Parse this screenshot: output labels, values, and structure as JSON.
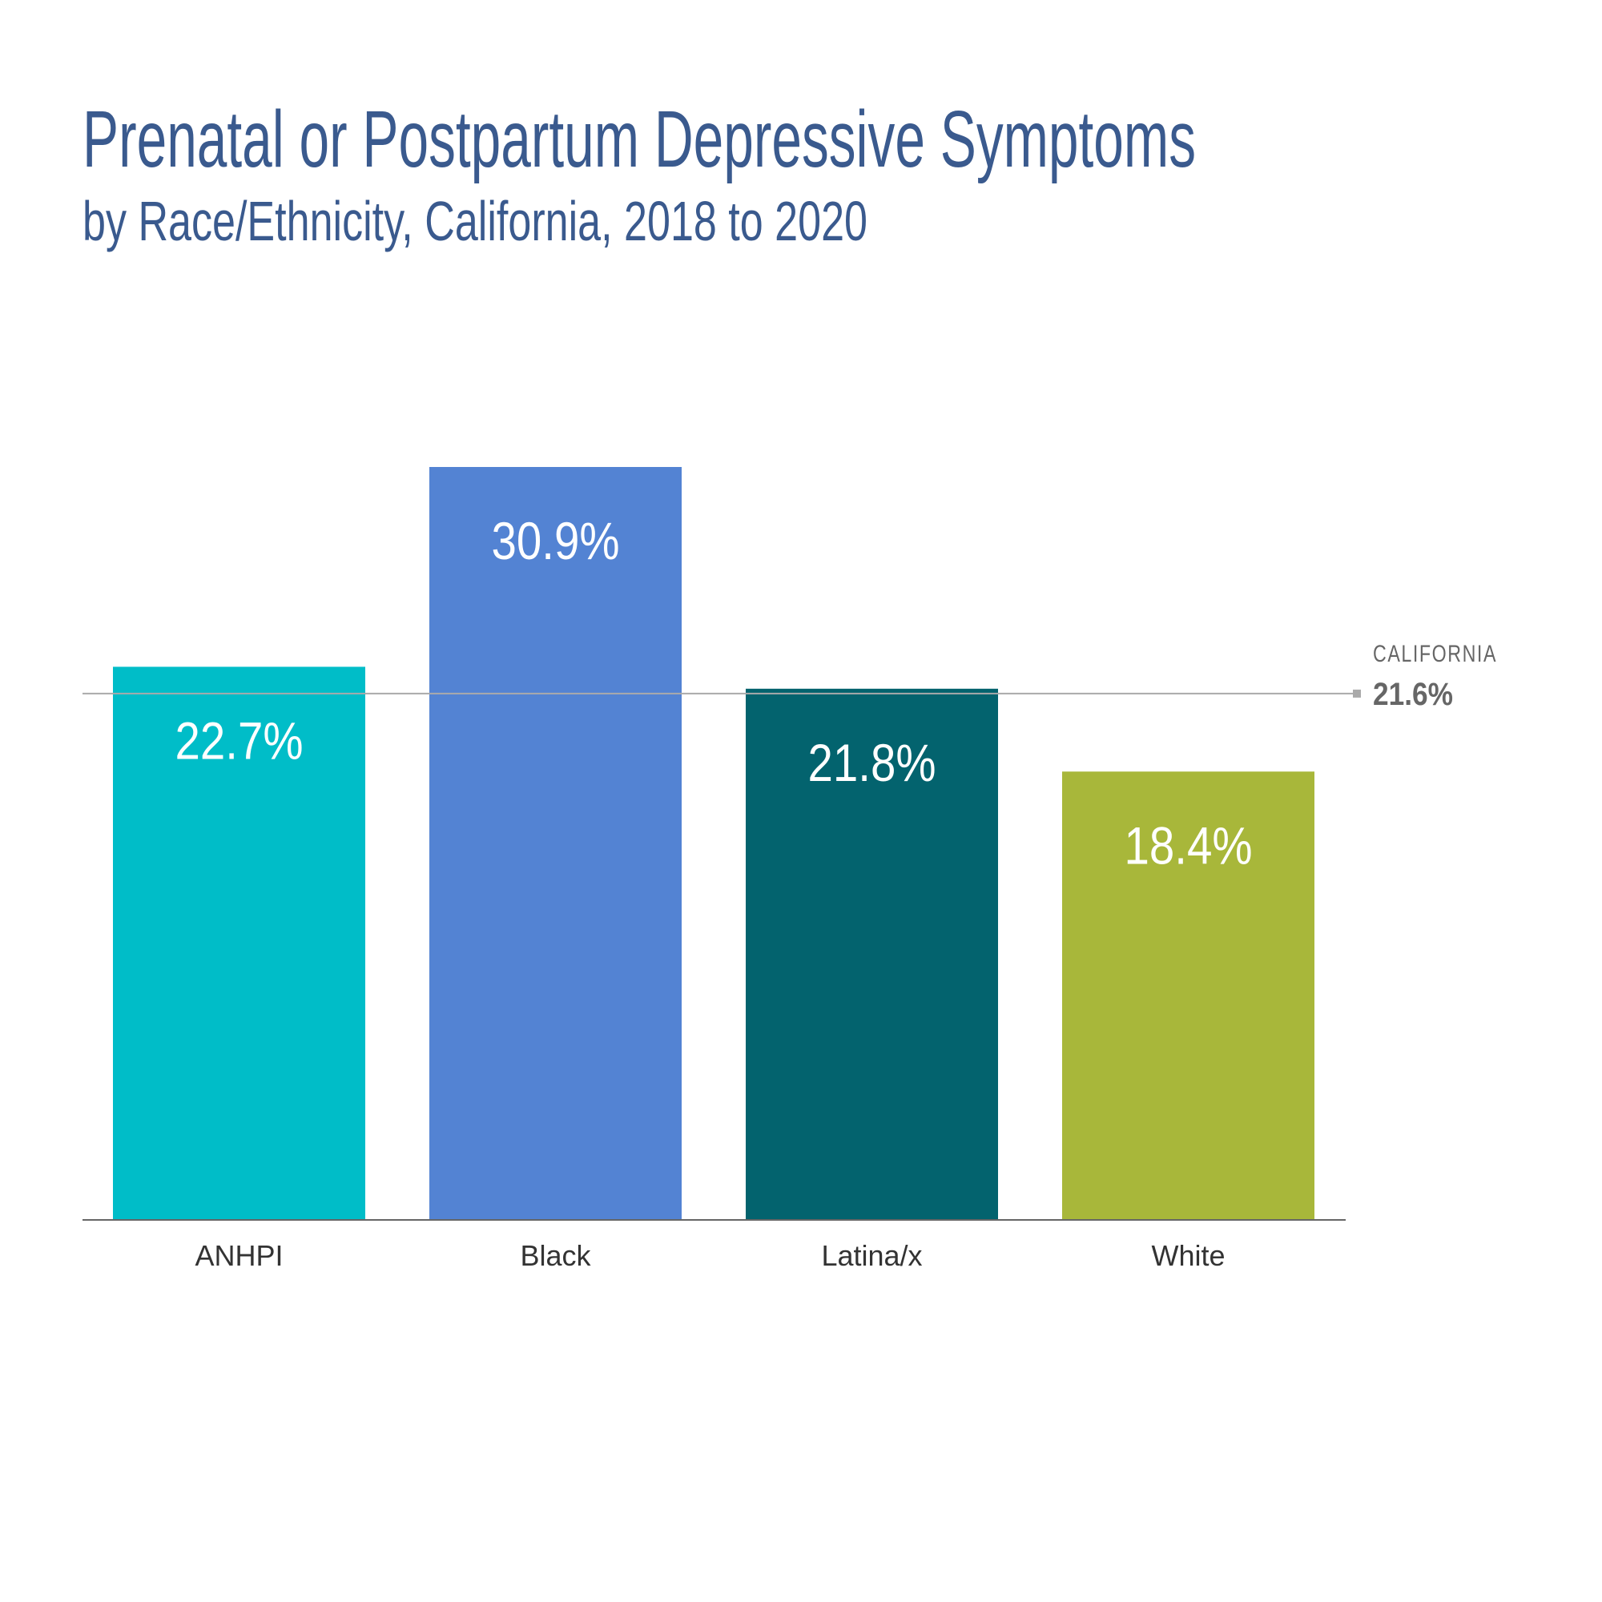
{
  "chart_data": {
    "type": "bar",
    "title": "Prenatal or Postpartum Depressive Symptoms",
    "subtitle": "by Race/Ethnicity, California, 2018 to 2020",
    "categories": [
      "ANHPI",
      "Black",
      "Latina/x",
      "White"
    ],
    "values": [
      22.7,
      30.9,
      21.8,
      18.4
    ],
    "value_labels": [
      "22.7%",
      "30.9%",
      "21.8%",
      "18.4%"
    ],
    "colors": [
      "#00BDC8",
      "#5383D3",
      "#03636E",
      "#A8B73A"
    ],
    "reference_line": {
      "label": "CALIFORNIA",
      "value": 21.6,
      "value_label": "21.6%",
      "color": "#AAAAAA"
    },
    "xlabel": "",
    "ylabel": "",
    "ylim": [
      0,
      30.9
    ],
    "grid": false
  }
}
